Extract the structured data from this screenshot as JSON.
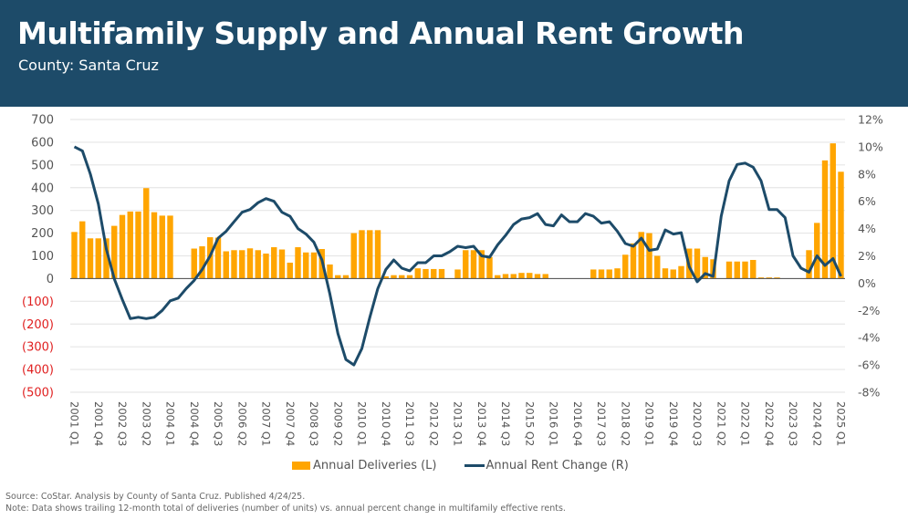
{
  "header": {
    "title": "Multifamily Supply and Annual Rent Growth",
    "subtitle": "County: Santa Cruz"
  },
  "colors": {
    "header_bg": "#1d4b69",
    "bars": "#ffa500",
    "line": "#1d4b69",
    "negative_tick": "#e02020"
  },
  "legend": {
    "deliveries": "Annual Deliveries (L)",
    "rent": "Annual Rent Change (R)"
  },
  "footer": {
    "source": "Source: CoStar. Analysis by County of Santa Cruz. Published 4/24/25.",
    "note": "Note: Data shows trailing 12-month total of deliveries (number of units) vs. annual percent change in multifamily effective rents."
  },
  "chart_data": {
    "type": "bar+line",
    "title": "Multifamily Supply and Annual Rent Growth",
    "x_start": "2001 Q1",
    "x_end": "2025 Q1",
    "x_tick_labels": [
      "2001 Q1",
      "2001 Q4",
      "2002 Q3",
      "2003 Q2",
      "2004 Q1",
      "2004 Q4",
      "2005 Q3",
      "2006 Q2",
      "2007 Q1",
      "2007 Q4",
      "2008 Q3",
      "2009 Q2",
      "2010 Q1",
      "2010 Q4",
      "2011 Q3",
      "2012 Q2",
      "2013 Q1",
      "2013 Q4",
      "2014 Q3",
      "2015 Q2",
      "2016 Q1",
      "2016 Q4",
      "2017 Q3",
      "2018 Q2",
      "2019 Q1",
      "2019 Q4",
      "2020 Q3",
      "2021 Q2",
      "2022 Q1",
      "2022 Q4",
      "2023 Q3",
      "2024 Q2",
      "2025 Q1"
    ],
    "y_left": {
      "min": -500,
      "max": 700,
      "step": 100,
      "tick_labels": [
        "700",
        "600",
        "500",
        "400",
        "300",
        "200",
        "100",
        "0",
        "(100)",
        "(200)",
        "(300)",
        "(400)",
        "(500)"
      ]
    },
    "y_right": {
      "min": -8,
      "max": 12,
      "step": 2,
      "tick_labels": [
        "12%",
        "10%",
        "8%",
        "6%",
        "4%",
        "2%",
        "0%",
        "-2%",
        "-4%",
        "-6%",
        "-8%"
      ]
    },
    "grid": true,
    "legend_position": "bottom",
    "series": [
      {
        "name": "Annual Deliveries (L)",
        "type": "bar",
        "axis": "left",
        "values": [
          205,
          252,
          177,
          177,
          177,
          232,
          280,
          295,
          295,
          398,
          292,
          277,
          277,
          0,
          0,
          132,
          142,
          182,
          180,
          120,
          125,
          125,
          133,
          125,
          110,
          138,
          128,
          70,
          138,
          115,
          115,
          130,
          62,
          15,
          15,
          200,
          213,
          213,
          213,
          10,
          15,
          15,
          15,
          45,
          42,
          42,
          42,
          0,
          40,
          125,
          125,
          125,
          95,
          15,
          20,
          20,
          25,
          25,
          20,
          20,
          0,
          0,
          0,
          0,
          0,
          40,
          40,
          40,
          45,
          105,
          155,
          205,
          200,
          100,
          45,
          40,
          55,
          132,
          132,
          95,
          85,
          0,
          75,
          75,
          75,
          82,
          5,
          5,
          5,
          0,
          0,
          0,
          125,
          245,
          520,
          595,
          470
        ]
      },
      {
        "name": "Annual Rent Change (R)",
        "type": "line",
        "axis": "right",
        "values": [
          10.0,
          9.7,
          8.0,
          5.8,
          2.5,
          0.3,
          -1.2,
          -2.6,
          -2.5,
          -2.6,
          -2.5,
          -2.0,
          -1.3,
          -1.1,
          -0.4,
          0.2,
          1.0,
          2.0,
          3.3,
          3.8,
          4.5,
          5.2,
          5.4,
          5.9,
          6.2,
          6.0,
          5.2,
          4.9,
          4.0,
          3.6,
          3.0,
          1.7,
          -0.8,
          -3.7,
          -5.6,
          -6.0,
          -4.8,
          -2.5,
          -0.4,
          1.0,
          1.7,
          1.1,
          0.9,
          1.5,
          1.5,
          2.0,
          2.0,
          2.3,
          2.7,
          2.6,
          2.7,
          2.0,
          1.9,
          2.8,
          3.5,
          4.3,
          4.7,
          4.8,
          5.1,
          4.3,
          4.2,
          5.0,
          4.5,
          4.5,
          5.1,
          4.9,
          4.4,
          4.5,
          3.8,
          2.9,
          2.7,
          3.3,
          2.4,
          2.5,
          3.9,
          3.6,
          3.7,
          1.2,
          0.1,
          0.7,
          0.5,
          4.9,
          7.5,
          8.7,
          8.8,
          8.5,
          7.5,
          5.4,
          5.4,
          4.8,
          2.0,
          1.1,
          0.8,
          2.0,
          1.3,
          1.8,
          0.5
        ]
      }
    ]
  }
}
